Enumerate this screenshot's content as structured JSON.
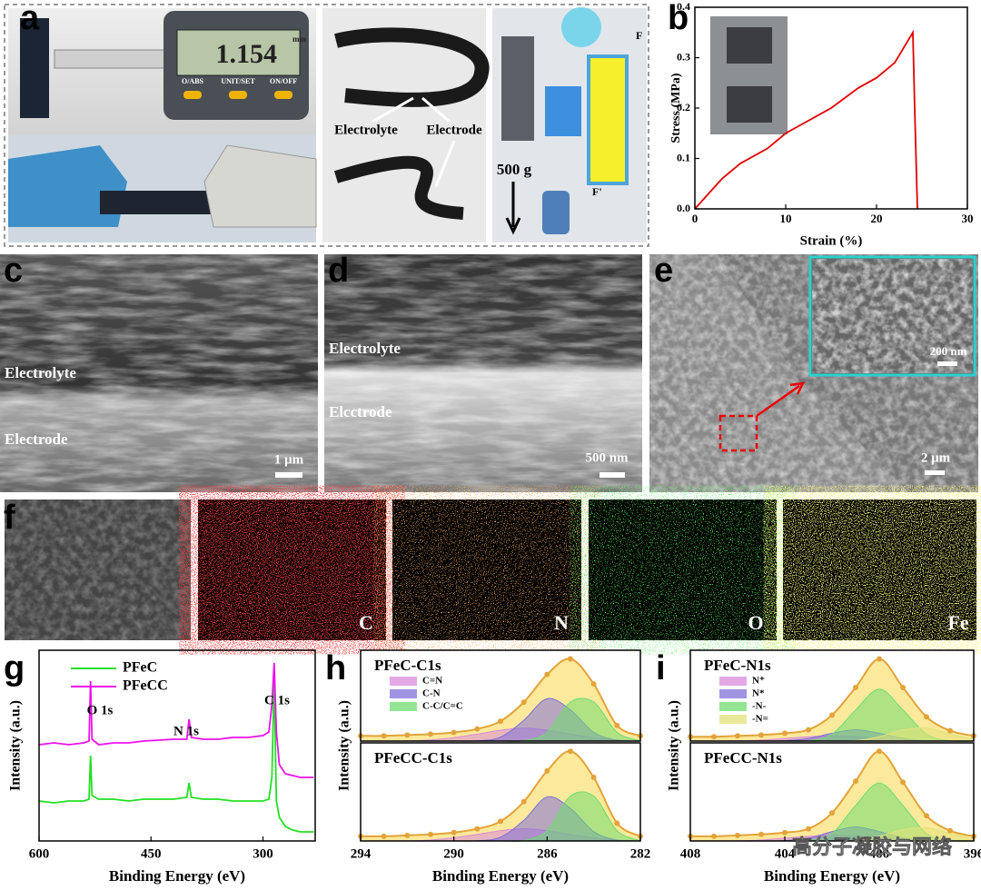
{
  "figure": {
    "a": {
      "label": "a",
      "display": "1.154",
      "unit": "mm",
      "buttons": [
        "O/ABS",
        "UNIT/SET",
        "ON/OFF"
      ],
      "electrolyte": "Electrolyte",
      "electrode": "Electrode",
      "weight": "500 g",
      "force": "F",
      "force2": "F'"
    },
    "c": {
      "label": "c",
      "electrolyte": "Electrolyte",
      "electrode": "Electrode",
      "scale": "1 μm"
    },
    "d": {
      "label": "d",
      "electrolyte": "Electrolyte",
      "electrode": "Elcctrode",
      "scale": "500 nm"
    },
    "e": {
      "label": "e",
      "scale": "2 μm",
      "inset_scale": "200 nm"
    },
    "f": {
      "label": "f",
      "maps": [
        "C",
        "N",
        "O",
        "Fe"
      ]
    },
    "watermark": "高分子凝胶与网络"
  },
  "chart_data": [
    {
      "type": "line",
      "label": "b",
      "xlabel": "Strain (%)",
      "ylabel": "Stress (MPa)",
      "x": [
        0,
        1,
        3,
        5,
        8,
        10,
        12,
        15,
        18,
        20,
        22,
        24,
        24.2,
        24.5
      ],
      "values": [
        0,
        0.02,
        0.06,
        0.09,
        0.12,
        0.15,
        0.17,
        0.2,
        0.24,
        0.26,
        0.29,
        0.35,
        0.2,
        0
      ],
      "color": "#e00000",
      "xlim": [
        0,
        30
      ],
      "xticks": [
        0,
        10,
        20,
        30
      ],
      "ylim": [
        0,
        0.4
      ],
      "yticks": [
        {
          "value": 0,
          "label": "0.0"
        },
        0.1,
        0.2,
        0.3,
        0.4
      ]
    },
    {
      "type": "line",
      "label": "g",
      "xlabel": "Binding Energy (eV)",
      "ylabel": "Intensity (a.u.)",
      "x": [
        600,
        580,
        560,
        540,
        533,
        531,
        529,
        520,
        500,
        480,
        460,
        420,
        402,
        399,
        396,
        380,
        360,
        340,
        320,
        300,
        292,
        288,
        285,
        282,
        278,
        270,
        260,
        250,
        232
      ],
      "series": [
        {
          "name": "PFeC",
          "color": "#22e022",
          "values": [
            2.2,
            2.1,
            2.2,
            2.2,
            2.3,
            4.7,
            2.5,
            2.3,
            2.3,
            2.2,
            2.3,
            2.3,
            2.4,
            3.2,
            2.4,
            2.3,
            2.3,
            2.2,
            2.2,
            2.2,
            2.3,
            3.5,
            9.0,
            2.2,
            1.3,
            0.8,
            0.6,
            0.5,
            0.5
          ]
        },
        {
          "name": "PFeCC",
          "color": "#ee10ee",
          "values": [
            5.3,
            5.4,
            5.3,
            5.4,
            5.5,
            8.8,
            5.6,
            5.3,
            5.4,
            5.4,
            5.5,
            5.6,
            5.6,
            6.7,
            5.7,
            5.6,
            5.6,
            5.7,
            5.7,
            5.8,
            6.0,
            7.5,
            9.8,
            6.0,
            4.2,
            3.7,
            3.6,
            3.5,
            3.5
          ]
        }
      ],
      "annotations": [
        "O 1s",
        "N 1s",
        "C 1s"
      ],
      "xlim": [
        600,
        230
      ],
      "xticks": [
        600,
        450,
        300
      ],
      "ylim": [
        0,
        10.5
      ]
    },
    {
      "type": "area",
      "label": "h",
      "title": "PFeC-C1s",
      "ylabel": "Intensity (a.u.)",
      "x": [
        294,
        293,
        292,
        291,
        290,
        289,
        288,
        287,
        286,
        285,
        284,
        283,
        282
      ],
      "series": [
        {
          "name": "C=N",
          "color": "#d98bd9",
          "values": [
            0,
            0,
            0.001,
            0.013,
            0.04,
            0.08,
            0.125,
            0.15,
            0.125,
            0.08,
            0.04,
            0.013,
            0.003
          ]
        },
        {
          "name": "C-N",
          "color": "#7d70d8",
          "values": [
            0,
            0,
            0,
            0,
            0,
            0.003,
            0.045,
            0.24,
            0.49,
            0.36,
            0.1,
            0.01,
            0
          ]
        },
        {
          "name": "C-C/C=C",
          "color": "#6fdc6f",
          "values": [
            0,
            0,
            0,
            0,
            0,
            0,
            0,
            0.004,
            0.1,
            0.45,
            0.45,
            0.1,
            0.004
          ]
        }
      ],
      "measured": {
        "color": "#e3a33a",
        "fill": "#fbe27a",
        "values": [
          0.06,
          0.06,
          0.07,
          0.08,
          0.1,
          0.14,
          0.23,
          0.45,
          0.77,
          0.95,
          0.66,
          0.18,
          0.06
        ]
      },
      "xlim": [
        294,
        282
      ],
      "ylim": [
        0,
        1.05
      ]
    },
    {
      "type": "area",
      "title": "PFeCC-C1s",
      "xlabel": "Binding Energy (eV)",
      "x": [
        294,
        293,
        292,
        291,
        290,
        289,
        288,
        287,
        286,
        285,
        284,
        283,
        282
      ],
      "series": [
        {
          "color": "#d98bd9",
          "values": [
            0,
            0,
            0.001,
            0.01,
            0.035,
            0.07,
            0.11,
            0.13,
            0.11,
            0.07,
            0.035,
            0.01,
            0.002
          ]
        },
        {
          "color": "#7d70d8",
          "values": [
            0,
            0,
            0,
            0,
            0,
            0.003,
            0.04,
            0.22,
            0.47,
            0.35,
            0.1,
            0.01,
            0
          ]
        },
        {
          "color": "#6fdc6f",
          "values": [
            0,
            0,
            0,
            0,
            0,
            0,
            0,
            0.004,
            0.11,
            0.48,
            0.48,
            0.11,
            0.004
          ]
        }
      ],
      "measured": {
        "color": "#e3a33a",
        "fill": "#fbe27a",
        "values": [
          0.05,
          0.05,
          0.06,
          0.07,
          0.09,
          0.13,
          0.21,
          0.42,
          0.75,
          0.96,
          0.68,
          0.19,
          0.05
        ]
      },
      "xlim": [
        294,
        282
      ],
      "xticks": [
        294,
        290,
        286,
        282
      ],
      "ylim": [
        0,
        1.05
      ]
    },
    {
      "type": "area",
      "label": "i",
      "title": "PFeC-N1s",
      "ylabel": "Intensity (a.u.)",
      "x": [
        408,
        407,
        406,
        405,
        404,
        403,
        402,
        401,
        400,
        399,
        398,
        397,
        396
      ],
      "series": [
        {
          "name": "N⁺",
          "color": "#d98bd9",
          "values": [
            0,
            0,
            0.002,
            0.01,
            0.03,
            0.05,
            0.06,
            0.05,
            0.03,
            0.01,
            0.002,
            0,
            0
          ]
        },
        {
          "name": "N*",
          "color": "#7d70d8",
          "values": [
            0,
            0,
            0,
            0,
            0.005,
            0.03,
            0.09,
            0.13,
            0.09,
            0.03,
            0.005,
            0,
            0
          ]
        },
        {
          "name": "-N-",
          "color": "#6fdc6f",
          "values": [
            0,
            0,
            0,
            0,
            0,
            0.004,
            0.08,
            0.36,
            0.6,
            0.36,
            0.08,
            0.004,
            0
          ]
        },
        {
          "name": "-N=",
          "color": "#e2e27a",
          "values": [
            0,
            0,
            0,
            0,
            0,
            0,
            0,
            0.005,
            0.05,
            0.13,
            0.15,
            0.08,
            0.02
          ]
        }
      ],
      "measured": {
        "color": "#e3a33a",
        "fill": "#fbe27a",
        "values": [
          0.05,
          0.05,
          0.06,
          0.07,
          0.09,
          0.13,
          0.3,
          0.62,
          0.95,
          0.62,
          0.28,
          0.12,
          0.06
        ]
      },
      "xlim": [
        408,
        396
      ],
      "ylim": [
        0,
        1.05
      ]
    },
    {
      "type": "area",
      "title": "PFeCC-N1s",
      "xlabel": "Binding Energy (eV)",
      "x": [
        408,
        407,
        406,
        405,
        404,
        403,
        402,
        401,
        400,
        399,
        398,
        397,
        396
      ],
      "series": [
        {
          "color": "#d98bd9",
          "values": [
            0,
            0,
            0.002,
            0.01,
            0.03,
            0.05,
            0.06,
            0.05,
            0.03,
            0.01,
            0.002,
            0,
            0
          ]
        },
        {
          "color": "#7d70d8",
          "values": [
            0,
            0,
            0,
            0,
            0.005,
            0.03,
            0.1,
            0.15,
            0.1,
            0.03,
            0.005,
            0,
            0
          ]
        },
        {
          "color": "#6fdc6f",
          "values": [
            0,
            0,
            0,
            0,
            0,
            0.004,
            0.08,
            0.38,
            0.62,
            0.38,
            0.08,
            0.004,
            0
          ]
        },
        {
          "color": "#e2e27a",
          "values": [
            0,
            0,
            0,
            0,
            0,
            0,
            0,
            0.005,
            0.05,
            0.12,
            0.14,
            0.08,
            0.02
          ]
        }
      ],
      "measured": {
        "color": "#e3a33a",
        "fill": "#fbe27a",
        "values": [
          0.05,
          0.05,
          0.06,
          0.07,
          0.09,
          0.13,
          0.3,
          0.64,
          0.96,
          0.63,
          0.27,
          0.11,
          0.05
        ]
      },
      "xlim": [
        408,
        396
      ],
      "xticks": [
        408,
        404,
        400,
        396
      ],
      "ylim": [
        0,
        1.05
      ]
    }
  ]
}
